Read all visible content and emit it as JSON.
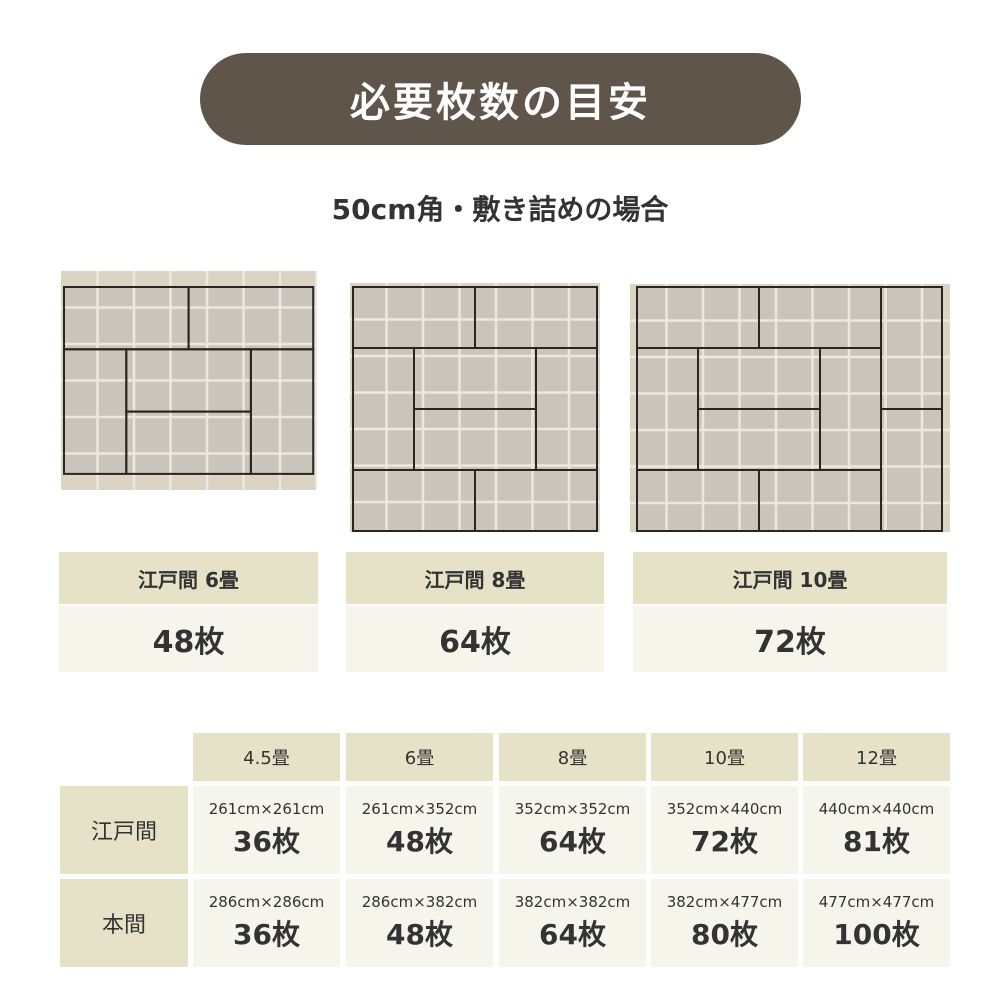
{
  "title": "必要枚数の目安",
  "subtitle": "50cm角・敷き詰めの場合",
  "cards": [
    {
      "label": "江戸間 6畳",
      "count": "48枚"
    },
    {
      "label": "江戸間 8畳",
      "count": "64枚"
    },
    {
      "label": "江戸間 10畳",
      "count": "72枚"
    }
  ],
  "colors": {
    "pill": "#5f554b",
    "header_cell": "#e6e2c8",
    "value_cell": "#f6f5ec",
    "tatami": "#c9c5ba",
    "floor": "#dcd4c3"
  },
  "table": {
    "columns": [
      "4.5畳",
      "6畳",
      "8畳",
      "10畳",
      "12畳"
    ],
    "rows": [
      {
        "label": "江戸間",
        "cells": [
          {
            "dim": "261cm×261cm",
            "count": "36枚"
          },
          {
            "dim": "261cm×352cm",
            "count": "48枚"
          },
          {
            "dim": "352cm×352cm",
            "count": "64枚"
          },
          {
            "dim": "352cm×440cm",
            "count": "72枚"
          },
          {
            "dim": "440cm×440cm",
            "count": "81枚"
          }
        ]
      },
      {
        "label": "本間",
        "cells": [
          {
            "dim": "286cm×286cm",
            "count": "36枚"
          },
          {
            "dim": "286cm×382cm",
            "count": "48枚"
          },
          {
            "dim": "382cm×382cm",
            "count": "64枚"
          },
          {
            "dim": "382cm×477cm",
            "count": "80枚"
          },
          {
            "dim": "477cm×477cm",
            "count": "100枚"
          }
        ]
      }
    ]
  }
}
